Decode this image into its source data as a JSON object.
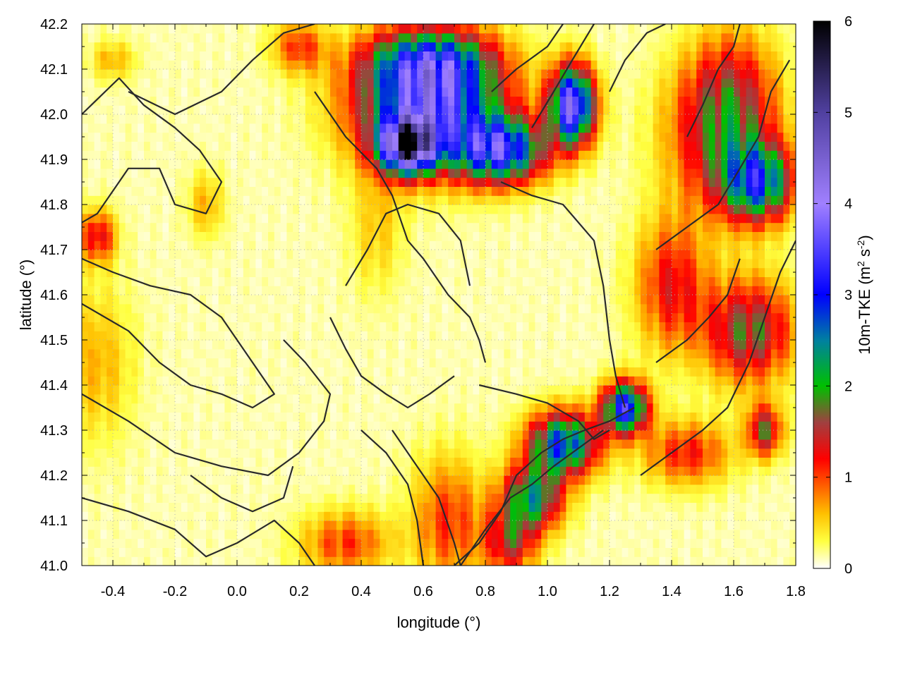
{
  "chart_data": {
    "type": "heatmap",
    "xlabel": "longitude (°)",
    "ylabel": "latitude (°)",
    "xlim": [
      -0.5,
      1.8
    ],
    "ylim": [
      41.0,
      42.2
    ],
    "xticks": [
      "-0.4",
      "-0.2",
      "0.0",
      "0.2",
      "0.4",
      "0.6",
      "0.8",
      "1.0",
      "1.2",
      "1.4",
      "1.6",
      "1.8"
    ],
    "xtick_values": [
      -0.4,
      -0.2,
      0.0,
      0.2,
      0.4,
      0.6,
      0.8,
      1.0,
      1.2,
      1.4,
      1.6,
      1.8
    ],
    "yticks": [
      "41.0",
      "41.1",
      "41.2",
      "41.3",
      "41.4",
      "41.5",
      "41.6",
      "41.7",
      "41.8",
      "41.9",
      "42.0",
      "42.1",
      "42.2"
    ],
    "ytick_values": [
      41.0,
      41.1,
      41.2,
      41.3,
      41.4,
      41.5,
      41.6,
      41.7,
      41.8,
      41.9,
      42.0,
      42.1,
      42.2
    ],
    "grid": true,
    "colorbar": {
      "label_parts": [
        "10m-TKE (m",
        "2",
        " s",
        "-2",
        ")"
      ],
      "range": [
        0,
        6
      ],
      "ticks": [
        "0",
        "1",
        "2",
        "3",
        "4",
        "5",
        "6"
      ],
      "tick_values": [
        0,
        1,
        2,
        3,
        4,
        5,
        6
      ],
      "stops": [
        {
          "value": 0.0,
          "color": "#ffffff"
        },
        {
          "value": 0.3,
          "color": "#ffff40"
        },
        {
          "value": 0.6,
          "color": "#ffc000"
        },
        {
          "value": 0.9,
          "color": "#ff6000"
        },
        {
          "value": 1.2,
          "color": "#ff0000"
        },
        {
          "value": 1.6,
          "color": "#a04040"
        },
        {
          "value": 2.0,
          "color": "#00c000"
        },
        {
          "value": 2.5,
          "color": "#0080a0"
        },
        {
          "value": 3.0,
          "color": "#0000ff"
        },
        {
          "value": 4.0,
          "color": "#a080ff"
        },
        {
          "value": 5.0,
          "color": "#5040a0"
        },
        {
          "value": 6.0,
          "color": "#000000"
        }
      ]
    },
    "hotspots": [
      {
        "lon": 0.62,
        "lat": 42.02,
        "value": 3.2,
        "sx": 0.16,
        "sy": 0.09
      },
      {
        "lon": 0.55,
        "lat": 41.93,
        "value": 4.2,
        "sx": 0.06,
        "sy": 0.04
      },
      {
        "lon": 0.85,
        "lat": 41.92,
        "value": 2.8,
        "sx": 0.1,
        "sy": 0.05
      },
      {
        "lon": 1.08,
        "lat": 42.02,
        "value": 3.6,
        "sx": 0.05,
        "sy": 0.06
      },
      {
        "lon": 0.62,
        "lat": 42.12,
        "value": 1.8,
        "sx": 0.14,
        "sy": 0.05
      },
      {
        "lon": 1.68,
        "lat": 41.85,
        "value": 2.4,
        "sx": 0.08,
        "sy": 0.06
      },
      {
        "lon": 1.55,
        "lat": 41.95,
        "value": 1.2,
        "sx": 0.12,
        "sy": 0.12
      },
      {
        "lon": 1.65,
        "lat": 41.52,
        "value": 1.6,
        "sx": 0.1,
        "sy": 0.08
      },
      {
        "lon": 1.4,
        "lat": 41.62,
        "value": 1.1,
        "sx": 0.08,
        "sy": 0.1
      },
      {
        "lon": 1.25,
        "lat": 41.35,
        "value": 3.0,
        "sx": 0.05,
        "sy": 0.04
      },
      {
        "lon": 1.05,
        "lat": 41.27,
        "value": 2.6,
        "sx": 0.08,
        "sy": 0.05
      },
      {
        "lon": 0.95,
        "lat": 41.15,
        "value": 2.0,
        "sx": 0.07,
        "sy": 0.05
      },
      {
        "lon": 0.88,
        "lat": 41.05,
        "value": 1.3,
        "sx": 0.06,
        "sy": 0.05
      },
      {
        "lon": 1.45,
        "lat": 41.25,
        "value": 1.0,
        "sx": 0.1,
        "sy": 0.05
      },
      {
        "lon": 0.35,
        "lat": 41.05,
        "value": 0.9,
        "sx": 0.1,
        "sy": 0.05
      },
      {
        "lon": 0.68,
        "lat": 41.1,
        "value": 0.9,
        "sx": 0.08,
        "sy": 0.1
      },
      {
        "lon": -0.45,
        "lat": 41.45,
        "value": 0.5,
        "sx": 0.08,
        "sy": 0.12
      },
      {
        "lon": -0.45,
        "lat": 41.73,
        "value": 1.2,
        "sx": 0.04,
        "sy": 0.04
      },
      {
        "lon": 0.45,
        "lat": 41.75,
        "value": 0.4,
        "sx": 0.06,
        "sy": 0.1
      },
      {
        "lon": -0.1,
        "lat": 41.8,
        "value": 0.5,
        "sx": 0.04,
        "sy": 0.05
      },
      {
        "lon": -0.4,
        "lat": 42.12,
        "value": 0.5,
        "sx": 0.05,
        "sy": 0.03
      },
      {
        "lon": 0.2,
        "lat": 42.15,
        "value": 0.9,
        "sx": 0.06,
        "sy": 0.04
      },
      {
        "lon": 1.6,
        "lat": 42.05,
        "value": 0.8,
        "sx": 0.1,
        "sy": 0.1
      },
      {
        "lon": 1.7,
        "lat": 41.3,
        "value": 1.5,
        "sx": 0.04,
        "sy": 0.04
      }
    ],
    "contours": [
      [
        [
          -0.5,
          42.0
        ],
        [
          -0.38,
          42.08
        ],
        [
          -0.3,
          42.02
        ],
        [
          -0.2,
          41.97
        ],
        [
          -0.12,
          41.92
        ],
        [
          -0.05,
          41.85
        ],
        [
          -0.1,
          41.78
        ],
        [
          -0.2,
          41.8
        ],
        [
          -0.25,
          41.88
        ],
        [
          -0.35,
          41.88
        ],
        [
          -0.45,
          41.78
        ],
        [
          -0.5,
          41.76
        ]
      ],
      [
        [
          -0.5,
          41.58
        ],
        [
          -0.35,
          41.52
        ],
        [
          -0.25,
          41.45
        ],
        [
          -0.15,
          41.4
        ],
        [
          -0.05,
          41.38
        ],
        [
          0.05,
          41.35
        ],
        [
          0.12,
          41.38
        ],
        [
          0.05,
          41.45
        ],
        [
          -0.05,
          41.55
        ],
        [
          -0.15,
          41.6
        ],
        [
          -0.28,
          41.62
        ],
        [
          -0.4,
          41.65
        ],
        [
          -0.5,
          41.68
        ]
      ],
      [
        [
          -0.5,
          41.38
        ],
        [
          -0.35,
          41.32
        ],
        [
          -0.2,
          41.25
        ],
        [
          -0.05,
          41.22
        ],
        [
          0.1,
          41.2
        ],
        [
          0.2,
          41.25
        ],
        [
          0.28,
          41.32
        ],
        [
          0.3,
          41.38
        ],
        [
          0.22,
          41.45
        ],
        [
          0.15,
          41.5
        ]
      ],
      [
        [
          -0.5,
          41.15
        ],
        [
          -0.35,
          41.12
        ],
        [
          -0.2,
          41.08
        ],
        [
          -0.1,
          41.02
        ],
        [
          0.0,
          41.05
        ],
        [
          0.12,
          41.1
        ],
        [
          0.2,
          41.05
        ],
        [
          0.25,
          41.0
        ]
      ],
      [
        [
          -0.35,
          42.05
        ],
        [
          -0.2,
          42.0
        ],
        [
          -0.05,
          42.05
        ],
        [
          0.05,
          42.12
        ],
        [
          0.15,
          42.18
        ],
        [
          0.25,
          42.2
        ]
      ],
      [
        [
          0.25,
          42.05
        ],
        [
          0.35,
          41.95
        ],
        [
          0.45,
          41.88
        ],
        [
          0.5,
          41.82
        ],
        [
          0.55,
          41.72
        ],
        [
          0.6,
          41.68
        ],
        [
          0.68,
          41.6
        ],
        [
          0.75,
          41.55
        ],
        [
          0.78,
          41.5
        ],
        [
          0.8,
          41.45
        ]
      ],
      [
        [
          0.35,
          41.62
        ],
        [
          0.42,
          41.7
        ],
        [
          0.48,
          41.78
        ],
        [
          0.55,
          41.8
        ],
        [
          0.65,
          41.78
        ],
        [
          0.72,
          41.72
        ],
        [
          0.75,
          41.62
        ]
      ],
      [
        [
          0.85,
          41.85
        ],
        [
          0.95,
          41.82
        ],
        [
          1.05,
          41.8
        ],
        [
          1.15,
          41.72
        ],
        [
          1.18,
          41.62
        ],
        [
          1.2,
          41.5
        ],
        [
          1.22,
          41.42
        ],
        [
          1.25,
          41.35
        ]
      ],
      [
        [
          0.78,
          41.4
        ],
        [
          0.9,
          41.38
        ],
        [
          1.0,
          41.36
        ],
        [
          1.1,
          41.32
        ],
        [
          1.15,
          41.28
        ],
        [
          1.2,
          41.3
        ]
      ],
      [
        [
          0.7,
          41.0
        ],
        [
          0.78,
          41.05
        ],
        [
          0.85,
          41.12
        ],
        [
          0.9,
          41.2
        ],
        [
          0.98,
          41.25
        ],
        [
          1.05,
          41.28
        ],
        [
          1.12,
          41.3
        ],
        [
          1.2,
          41.32
        ],
        [
          1.28,
          41.35
        ]
      ],
      [
        [
          0.72,
          41.0
        ],
        [
          0.8,
          41.08
        ],
        [
          0.88,
          41.15
        ],
        [
          0.95,
          41.18
        ],
        [
          1.02,
          41.22
        ],
        [
          1.1,
          41.26
        ],
        [
          1.18,
          41.3
        ]
      ],
      [
        [
          0.4,
          41.3
        ],
        [
          0.48,
          41.25
        ],
        [
          0.55,
          41.18
        ],
        [
          0.58,
          41.1
        ],
        [
          0.6,
          41.0
        ]
      ],
      [
        [
          0.5,
          41.3
        ],
        [
          0.58,
          41.22
        ],
        [
          0.65,
          41.15
        ],
        [
          0.7,
          41.05
        ],
        [
          0.72,
          41.0
        ]
      ],
      [
        [
          1.3,
          41.2
        ],
        [
          1.4,
          41.25
        ],
        [
          1.5,
          41.3
        ],
        [
          1.58,
          41.35
        ],
        [
          1.65,
          41.45
        ],
        [
          1.7,
          41.55
        ],
        [
          1.75,
          41.65
        ],
        [
          1.8,
          41.72
        ]
      ],
      [
        [
          1.35,
          41.7
        ],
        [
          1.45,
          41.75
        ],
        [
          1.55,
          41.8
        ],
        [
          1.62,
          41.88
        ],
        [
          1.68,
          41.95
        ],
        [
          1.72,
          42.05
        ],
        [
          1.78,
          42.12
        ]
      ],
      [
        [
          1.2,
          42.05
        ],
        [
          1.25,
          42.12
        ],
        [
          1.32,
          42.18
        ],
        [
          1.38,
          42.2
        ]
      ],
      [
        [
          1.45,
          41.95
        ],
        [
          1.5,
          42.02
        ],
        [
          1.55,
          42.1
        ],
        [
          1.6,
          42.15
        ],
        [
          1.62,
          42.2
        ]
      ],
      [
        [
          0.82,
          42.05
        ],
        [
          0.9,
          42.1
        ],
        [
          1.0,
          42.15
        ],
        [
          1.05,
          42.2
        ]
      ],
      [
        [
          0.95,
          41.97
        ],
        [
          1.02,
          42.05
        ],
        [
          1.08,
          42.12
        ],
        [
          1.15,
          42.2
        ]
      ],
      [
        [
          0.3,
          41.55
        ],
        [
          0.35,
          41.48
        ],
        [
          0.4,
          41.42
        ],
        [
          0.48,
          41.38
        ],
        [
          0.55,
          41.35
        ],
        [
          0.62,
          41.38
        ],
        [
          0.7,
          41.42
        ]
      ],
      [
        [
          1.35,
          41.45
        ],
        [
          1.45,
          41.5
        ],
        [
          1.52,
          41.55
        ],
        [
          1.58,
          41.6
        ],
        [
          1.62,
          41.68
        ]
      ],
      [
        [
          -0.15,
          41.2
        ],
        [
          -0.05,
          41.15
        ],
        [
          0.05,
          41.12
        ],
        [
          0.15,
          41.15
        ],
        [
          0.18,
          41.22
        ]
      ]
    ]
  }
}
